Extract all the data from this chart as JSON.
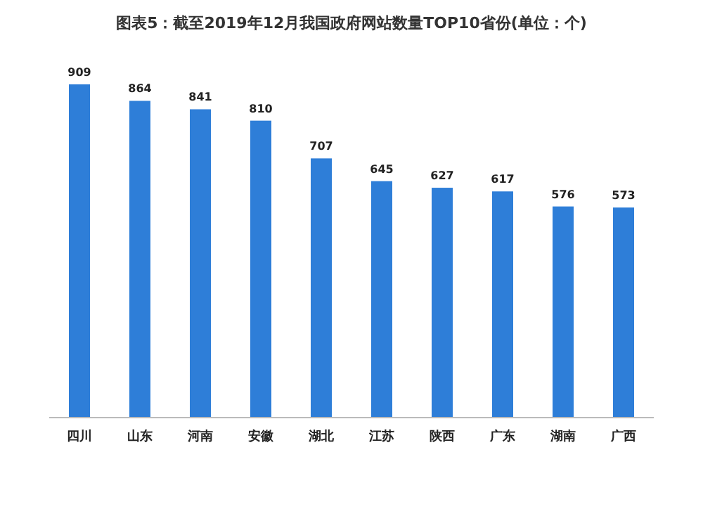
{
  "chart_data": {
    "type": "bar",
    "title": "图表5：截至2019年12月我国政府网站数量TOP10省份(单位：个)",
    "categories": [
      "四川",
      "山东",
      "河南",
      "安徽",
      "湖北",
      "江苏",
      "陕西",
      "广东",
      "湖南",
      "广西"
    ],
    "values": [
      909,
      864,
      841,
      810,
      707,
      645,
      627,
      617,
      576,
      573
    ],
    "color": "#2e7ed8",
    "data_labels": true
  }
}
